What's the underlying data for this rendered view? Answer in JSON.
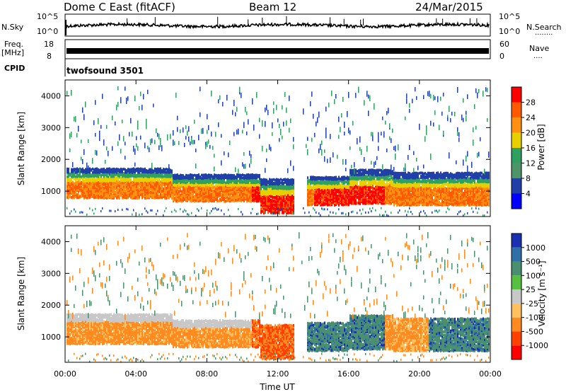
{
  "header": {
    "radar": "Dome C East (fitACF)",
    "beam": "Beam 12",
    "date": "24/Mar/2015"
  },
  "nsky_panel": {
    "left_label": "N.Sky",
    "right_label": "N.Search",
    "left_ticks": [
      "10^5",
      "10^0"
    ],
    "right_ticks": [
      "10^5",
      "10^0"
    ],
    "right_legend_dots": "........"
  },
  "freq_panel": {
    "left_label_1": "Freq.",
    "left_label_2": "[MHz]",
    "right_label": "Nave",
    "left_ticks": [
      "18",
      "8"
    ],
    "right_ticks": [
      "60",
      "0"
    ],
    "right_legend_dots": "...."
  },
  "cpid_panel": {
    "label": "CPID",
    "program": "twofsound 3501"
  },
  "colors": {
    "power_scale": [
      "#0000ff",
      "#2040a8",
      "#4e9468",
      "#30a060",
      "#e8d000",
      "#ff9010",
      "#ff5a00",
      "#ff0000"
    ],
    "velocity_scale": [
      "#1a30b0",
      "#3070a8",
      "#4a9070",
      "#58c040",
      "#c8c8c8",
      "#ffc060",
      "#ff8a20",
      "#ff4000",
      "#ff0000"
    ]
  },
  "chart_data": [
    {
      "type": "heatmap",
      "name": "power",
      "ylabel": "Slant Range [km]",
      "xlabel": "",
      "xlim": [
        0,
        24
      ],
      "ylim": [
        200,
        4500
      ],
      "y_ticks": [
        "1000",
        "2000",
        "3000",
        "4000"
      ],
      "y_tick_values": [
        1000,
        2000,
        3000,
        4000
      ],
      "colorbar": {
        "label": "Power [dB]",
        "range": [
          0,
          32
        ],
        "ticks": [
          "4",
          "8",
          "12",
          "16",
          "20",
          "24",
          "28"
        ],
        "tick_values": [
          4,
          8,
          12,
          16,
          20,
          24,
          28
        ]
      }
    },
    {
      "type": "heatmap",
      "name": "velocity",
      "ylabel": "Slant Range [km]",
      "xlabel": "Time UT",
      "xlim": [
        0,
        24
      ],
      "ylim": [
        200,
        4500
      ],
      "y_ticks": [
        "1000",
        "2000",
        "3000",
        "4000"
      ],
      "y_tick_values": [
        1000,
        2000,
        3000,
        4000
      ],
      "x_ticks": [
        "00:00",
        "04:00",
        "08:00",
        "12:00",
        "16:00",
        "20:00",
        "00:00"
      ],
      "x_tick_values": [
        0,
        4,
        8,
        12,
        16,
        20,
        24
      ],
      "colorbar": {
        "label": "Velocity [m s⁻¹]",
        "ticks": [
          "1000",
          "500",
          "100",
          "25",
          "-25",
          "-100",
          "-500",
          "-1000"
        ]
      }
    }
  ]
}
